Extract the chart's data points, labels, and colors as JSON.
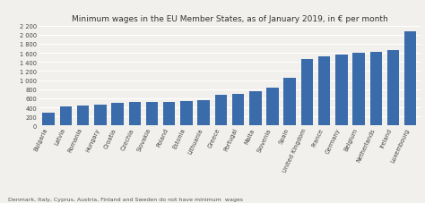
{
  "title": "Minimum wages in the EU Member States, as of January 2019, in € per month",
  "footnote": "Denmark, Italy, Cyprus, Austria, Finland and Sweden do not have minimum  wages",
  "categories": [
    "Bulgaria",
    "Latvia",
    "Romania",
    "Hungary",
    "Croatia",
    "Czechia",
    "Slovakia",
    "Poland",
    "Estonia",
    "Lithuania",
    "Greece",
    "Portugal",
    "Malta",
    "Slovenia",
    "Spain",
    "United Kingdom",
    "France",
    "Germany",
    "Belgium",
    "Netherlands",
    "Ireland",
    "Luxembourg"
  ],
  "values": [
    286,
    430,
    446,
    464,
    506,
    519,
    520,
    523,
    540,
    555,
    683,
    700,
    762,
    843,
    1050,
    1461,
    1521,
    1557,
    1594,
    1616,
    1656,
    2071
  ],
  "bar_color": "#3A6BAA",
  "ylim": [
    0,
    2200
  ],
  "yticks": [
    0,
    200,
    400,
    600,
    800,
    1000,
    1200,
    1400,
    1600,
    1800,
    2000,
    2200
  ],
  "background_color": "#f2f0ed",
  "grid_color": "#ffffff",
  "title_fontsize": 6.5,
  "tick_fontsize": 4.8,
  "footnote_fontsize": 4.5
}
